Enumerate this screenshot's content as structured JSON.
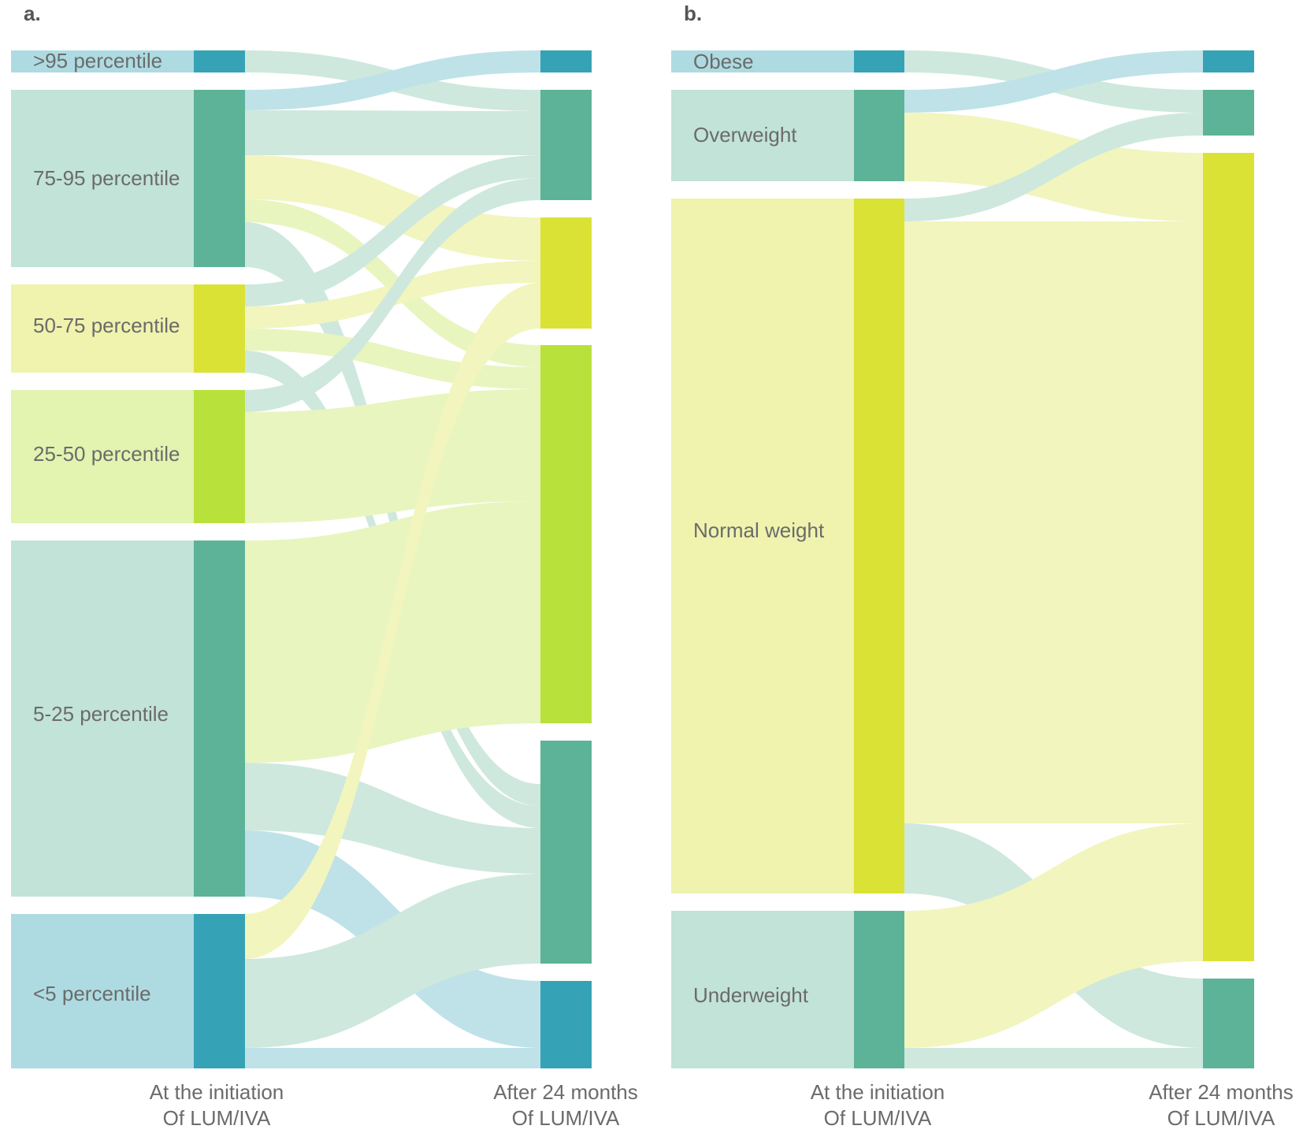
{
  "colors": {
    "teal_dark": "#35a3b5",
    "teal_light": "#aedbe2",
    "green_dark": "#5db397",
    "green_light": "#c2e3d7",
    "yellow_dark": "#dbe236",
    "yellow_light": "#eff3ad",
    "lime_dark": "#b8e23b",
    "lime_light": "#e3f3b0",
    "label": "#6b6b6b",
    "letter": "#555555"
  },
  "panel_a": {
    "letter": "a.",
    "axis_left": [
      "At the initiation",
      "Of LUM/IVA"
    ],
    "axis_right": [
      "After 24 months",
      "Of LUM/IVA"
    ],
    "categories": [
      ">95 percentile",
      "75-95 percentile",
      "50-75 percentile",
      "25-50 percentile",
      "5-25 percentile",
      "<5 percentile"
    ]
  },
  "panel_b": {
    "letter": "b.",
    "axis_left": [
      "At the initiation",
      "Of LUM/IVA"
    ],
    "axis_right": [
      "After 24 months",
      "Of LUM/IVA"
    ],
    "categories": [
      "Obese",
      "Overweight",
      "Normal weight",
      "Underweight"
    ]
  }
}
